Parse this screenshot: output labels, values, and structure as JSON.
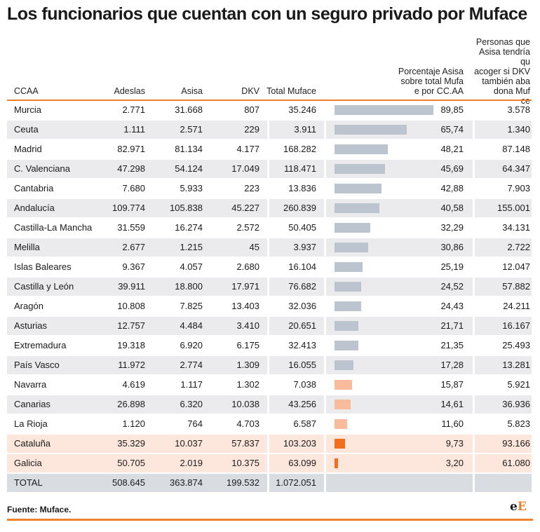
{
  "title": "Los funcionarios que cuentan con un seguro privado por Muface",
  "source": "Fuente: Muface.",
  "logo": {
    "small": "e",
    "big": "E"
  },
  "colors": {
    "bar_gray": "#bcc4cf",
    "bar_light_orange": "#f9bb9c",
    "bar_orange": "#f26e1c",
    "accent": "#f07f2e"
  },
  "chart_data": {
    "type": "table",
    "columns": [
      "CCAA",
      "Adeslas",
      "Asisa",
      "DKV",
      "Total Muface",
      "Porcentaje Asisa sobre total Muface por CC.AA",
      "Personas que Asisa tendría que acoger si DKV también abandona Muface"
    ],
    "bar_scale_max": 89.85,
    "rows": [
      {
        "ccaa": "Murcia",
        "adeslas": "2.771",
        "asisa": "31.668",
        "dkv": "807",
        "total": "35.246",
        "pct": "89,85",
        "pct_value": 89.85,
        "personas": "3.578",
        "bar_color": "gray"
      },
      {
        "ccaa": "Ceuta",
        "adeslas": "1.111",
        "asisa": "2.571",
        "dkv": "229",
        "total": "3.911",
        "pct": "65,74",
        "pct_value": 65.74,
        "personas": "1.340",
        "bar_color": "gray"
      },
      {
        "ccaa": "Madrid",
        "adeslas": "82.971",
        "asisa": "81.134",
        "dkv": "4.177",
        "total": "168.282",
        "pct": "48,21",
        "pct_value": 48.21,
        "personas": "87.148",
        "bar_color": "gray"
      },
      {
        "ccaa": "C. Valenciana",
        "adeslas": "47.298",
        "asisa": "54.124",
        "dkv": "17.049",
        "total": "118.471",
        "pct": "45,69",
        "pct_value": 45.69,
        "personas": "64.347",
        "bar_color": "gray"
      },
      {
        "ccaa": "Cantabria",
        "adeslas": "7.680",
        "asisa": "5.933",
        "dkv": "223",
        "total": "13.836",
        "pct": "42,88",
        "pct_value": 42.88,
        "personas": "7.903",
        "bar_color": "gray"
      },
      {
        "ccaa": "Andalucía",
        "adeslas": "109.774",
        "asisa": "105.838",
        "dkv": "45.227",
        "total": "260.839",
        "pct": "40,58",
        "pct_value": 40.58,
        "personas": "155.001",
        "bar_color": "gray"
      },
      {
        "ccaa": "Castilla-La Mancha",
        "adeslas": "31.559",
        "asisa": "16.274",
        "dkv": "2.572",
        "total": "50.405",
        "pct": "32,29",
        "pct_value": 32.29,
        "personas": "34.131",
        "bar_color": "gray"
      },
      {
        "ccaa": "Melilla",
        "adeslas": "2.677",
        "asisa": "1.215",
        "dkv": "45",
        "total": "3.937",
        "pct": "30,86",
        "pct_value": 30.86,
        "personas": "2.722",
        "bar_color": "gray"
      },
      {
        "ccaa": "Islas Baleares",
        "adeslas": "9.367",
        "asisa": "4.057",
        "dkv": "2.680",
        "total": "16.104",
        "pct": "25,19",
        "pct_value": 25.19,
        "personas": "12.047",
        "bar_color": "gray"
      },
      {
        "ccaa": "Castilla y León",
        "adeslas": "39.911",
        "asisa": "18.800",
        "dkv": "17.971",
        "total": "76.682",
        "pct": "24,52",
        "pct_value": 24.52,
        "personas": "57.882",
        "bar_color": "gray"
      },
      {
        "ccaa": "Aragón",
        "adeslas": "10.808",
        "asisa": "7.825",
        "dkv": "13.403",
        "total": "32.036",
        "pct": "24,43",
        "pct_value": 24.43,
        "personas": "24.211",
        "bar_color": "gray"
      },
      {
        "ccaa": "Asturias",
        "adeslas": "12.757",
        "asisa": "4.484",
        "dkv": "3.410",
        "total": "20.651",
        "pct": "21,71",
        "pct_value": 21.71,
        "personas": "16.167",
        "bar_color": "gray"
      },
      {
        "ccaa": "Extremadura",
        "adeslas": "19.318",
        "asisa": "6.920",
        "dkv": "6.175",
        "total": "32.413",
        "pct": "21,35",
        "pct_value": 21.35,
        "personas": "25.493",
        "bar_color": "gray"
      },
      {
        "ccaa": "País Vasco",
        "adeslas": "11.972",
        "asisa": "2.774",
        "dkv": "1.309",
        "total": "16.055",
        "pct": "17,28",
        "pct_value": 17.28,
        "personas": "13.281",
        "bar_color": "gray"
      },
      {
        "ccaa": "Navarra",
        "adeslas": "4.619",
        "asisa": "1.117",
        "dkv": "1.302",
        "total": "7.038",
        "pct": "15,87",
        "pct_value": 15.87,
        "personas": "5.921",
        "bar_color": "light_orange"
      },
      {
        "ccaa": "Canarias",
        "adeslas": "26.898",
        "asisa": "6.320",
        "dkv": "10.038",
        "total": "43.256",
        "pct": "14,61",
        "pct_value": 14.61,
        "personas": "36.936",
        "bar_color": "light_orange"
      },
      {
        "ccaa": "La Rioja",
        "adeslas": "1.120",
        "asisa": "764",
        "dkv": "4.703",
        "total": "6.587",
        "pct": "11,60",
        "pct_value": 11.6,
        "personas": "5.823",
        "bar_color": "light_orange"
      },
      {
        "ccaa": "Cataluña",
        "adeslas": "35.329",
        "asisa": "10.037",
        "dkv": "57.837",
        "total": "103.203",
        "pct": "9,73",
        "pct_value": 9.73,
        "personas": "93.166",
        "bar_color": "orange",
        "highlight": true
      },
      {
        "ccaa": "Galicia",
        "adeslas": "50.705",
        "asisa": "2.019",
        "dkv": "10.375",
        "total": "63.099",
        "pct": "3,20",
        "pct_value": 3.2,
        "personas": "61.080",
        "bar_color": "orange",
        "highlight": true
      }
    ],
    "total_row": {
      "ccaa": "TOTAL",
      "adeslas": "508.645",
      "asisa": "363.874",
      "dkv": "199.532",
      "total": "1.072.051"
    }
  }
}
